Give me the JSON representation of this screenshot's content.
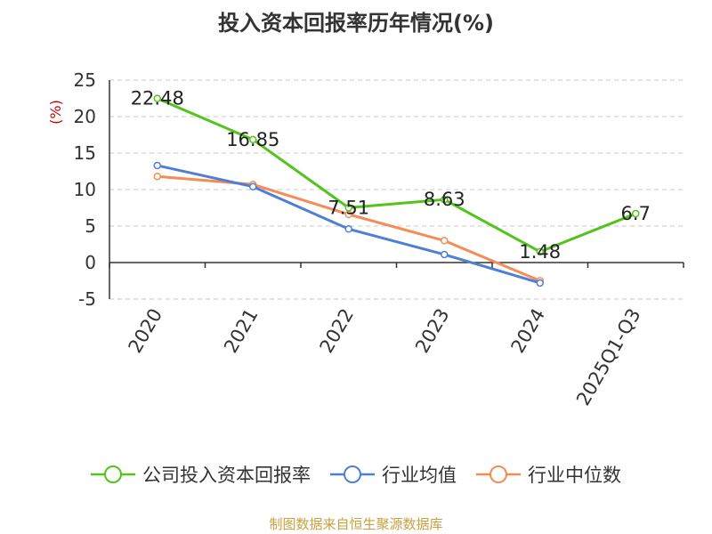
{
  "colors": {
    "company": "#52c41a",
    "industry_avg": "#4e7fd6",
    "industry_median": "#f58c55",
    "grid": "#c8c8c8",
    "axis": "#333333",
    "unit": "#cc0000",
    "source": "#c8a040"
  },
  "chart_data": {
    "type": "line",
    "title": "投入资本回报率历年情况(%)",
    "ylabel": "(%)",
    "categories": [
      "2020",
      "2021",
      "2022",
      "2023",
      "2024",
      "2025Q1-Q3"
    ],
    "ylim": [
      -5,
      25
    ],
    "yticks": [
      25,
      20,
      15,
      10,
      5,
      0,
      -5
    ],
    "grid": true,
    "legend_position": "bottom",
    "series": [
      {
        "name": "公司投入资本回报率",
        "key": "company",
        "values": [
          22.48,
          16.85,
          7.51,
          8.63,
          1.48,
          6.7
        ],
        "labels": [
          "22.48",
          "16.85",
          "7.51",
          "8.63",
          "1.48",
          "6.7"
        ]
      },
      {
        "name": "行业均值",
        "key": "industry_avg",
        "values": [
          13.3,
          10.4,
          4.6,
          1.1,
          -2.8,
          null
        ]
      },
      {
        "name": "行业中位数",
        "key": "industry_median",
        "values": [
          11.8,
          10.7,
          6.6,
          3.0,
          -2.5,
          null
        ]
      }
    ]
  },
  "footer": {
    "source": "制图数据来自恒生聚源数据库"
  }
}
